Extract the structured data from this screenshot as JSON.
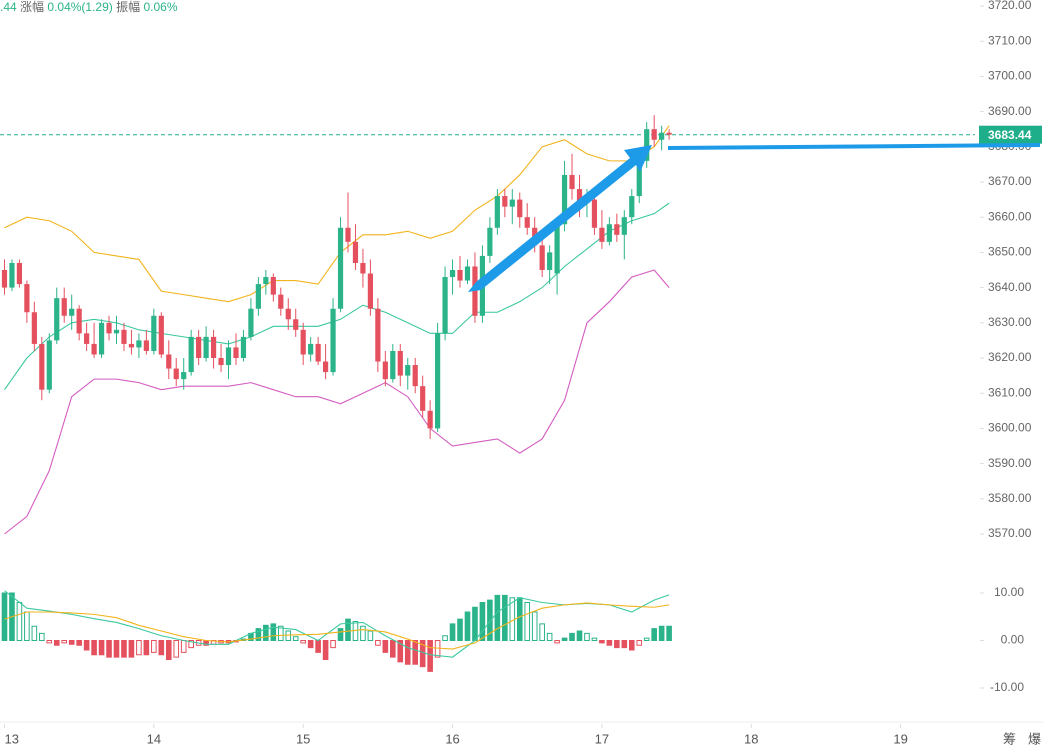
{
  "header": [
    ".44",
    "涨幅",
    "0.04%(1.29)",
    "振幅",
    "0.06%"
  ],
  "tools": [
    "筹",
    "爆"
  ],
  "chart_data": {
    "type": "candlestick",
    "up_color": "#2bb38a",
    "down_color": "#e5505e",
    "xlim": [
      12.97,
      19.96
    ],
    "xticks": [
      13,
      14,
      15,
      16,
      17,
      18,
      19
    ],
    "ylim": [
      3570,
      3720
    ],
    "yticks": [
      {
        "value": 3720,
        "label": "3720.00"
      },
      {
        "value": 3710,
        "label": "3710.00"
      },
      {
        "value": 3700,
        "label": "3700.00"
      },
      {
        "value": 3690,
        "label": "3690.00"
      },
      {
        "value": 3680,
        "label": "3680.00"
      },
      {
        "value": 3670,
        "label": "3670.00"
      },
      {
        "value": 3660,
        "label": "3660.00"
      },
      {
        "value": 3650,
        "label": "3650.00"
      },
      {
        "value": 3640,
        "label": "3640.00"
      },
      {
        "value": 3630,
        "label": "3630.00"
      },
      {
        "value": 3620,
        "label": "3620.00"
      },
      {
        "value": 3610,
        "label": "3610.00"
      },
      {
        "value": 3600,
        "label": "3600.00"
      },
      {
        "value": 3590,
        "label": "3590.00"
      },
      {
        "value": 3580,
        "label": "3580.00"
      },
      {
        "value": 3570,
        "label": "3570.00"
      }
    ],
    "last_price": 3683.44,
    "last_price_color": "#1fae8a",
    "x": [
      13,
      13.05,
      13.1,
      13.15,
      13.2,
      13.25,
      13.3,
      13.35,
      13.4,
      13.45,
      13.5,
      13.55,
      13.6,
      13.65,
      13.7,
      13.75,
      13.8,
      13.85,
      13.9,
      13.95,
      14,
      14.05,
      14.1,
      14.15,
      14.2,
      14.25,
      14.3,
      14.35,
      14.4,
      14.45,
      14.5,
      14.55,
      14.6,
      14.65,
      14.7,
      14.75,
      14.8,
      14.85,
      14.9,
      14.95,
      15,
      15.05,
      15.1,
      15.15,
      15.2,
      15.25,
      15.3,
      15.35,
      15.4,
      15.45,
      15.5,
      15.55,
      15.6,
      15.65,
      15.7,
      15.75,
      15.8,
      15.85,
      15.9,
      15.95,
      16,
      16.05,
      16.1,
      16.15,
      16.2,
      16.25,
      16.3,
      16.35,
      16.4,
      16.45,
      16.5,
      16.55,
      16.6,
      16.65,
      16.7,
      16.75,
      16.8,
      16.85,
      16.9,
      16.95,
      17,
      17.05,
      17.1,
      17.15,
      17.2,
      17.25,
      17.3,
      17.35,
      17.4,
      17.45
    ],
    "ohlc": [
      [
        3645,
        3648,
        3638,
        3640
      ],
      [
        3640,
        3648,
        3639,
        3647
      ],
      [
        3647,
        3648,
        3640,
        3641
      ],
      [
        3641,
        3642,
        3630,
        3633
      ],
      [
        3633,
        3636,
        3622,
        3624
      ],
      [
        3624,
        3626,
        3608,
        3611
      ],
      [
        3611,
        3627,
        3610,
        3625
      ],
      [
        3625,
        3640,
        3624,
        3637
      ],
      [
        3637,
        3640,
        3630,
        3632
      ],
      [
        3632,
        3638,
        3628,
        3634
      ],
      [
        3634,
        3635,
        3625,
        3627
      ],
      [
        3627,
        3630,
        3622,
        3624
      ],
      [
        3624,
        3630,
        3620,
        3621
      ],
      [
        3621,
        3631,
        3620,
        3630
      ],
      [
        3630,
        3632,
        3625,
        3627
      ],
      [
        3627,
        3632,
        3624,
        3628
      ],
      [
        3628,
        3630,
        3622,
        3624
      ],
      [
        3624,
        3628,
        3621,
        3623
      ],
      [
        3623,
        3627,
        3620,
        3625
      ],
      [
        3625,
        3628,
        3621,
        3622
      ],
      [
        3622,
        3634,
        3621,
        3632
      ],
      [
        3632,
        3633,
        3620,
        3621
      ],
      [
        3621,
        3625,
        3614,
        3617
      ],
      [
        3617,
        3620,
        3612,
        3614
      ],
      [
        3614,
        3620,
        3611,
        3616
      ],
      [
        3616,
        3628,
        3615,
        3626
      ],
      [
        3626,
        3628,
        3618,
        3620
      ],
      [
        3620,
        3629,
        3619,
        3626
      ],
      [
        3626,
        3628,
        3617,
        3620
      ],
      [
        3620,
        3624,
        3616,
        3618
      ],
      [
        3618,
        3625,
        3614,
        3623
      ],
      [
        3623,
        3627,
        3618,
        3620
      ],
      [
        3620,
        3628,
        3619,
        3626
      ],
      [
        3626,
        3637,
        3625,
        3634
      ],
      [
        3634,
        3643,
        3632,
        3641
      ],
      [
        3641,
        3645,
        3638,
        3643
      ],
      [
        3643,
        3644,
        3636,
        3638
      ],
      [
        3638,
        3640,
        3632,
        3634
      ],
      [
        3634,
        3637,
        3628,
        3631
      ],
      [
        3631,
        3634,
        3626,
        3628
      ],
      [
        3628,
        3630,
        3618,
        3621
      ],
      [
        3621,
        3626,
        3619,
        3624
      ],
      [
        3624,
        3626,
        3618,
        3619
      ],
      [
        3619,
        3624,
        3614,
        3616
      ],
      [
        3616,
        3637,
        3615,
        3634
      ],
      [
        3634,
        3660,
        3633,
        3657
      ],
      [
        3657,
        3667,
        3650,
        3653
      ],
      [
        3653,
        3658,
        3645,
        3647
      ],
      [
        3647,
        3651,
        3640,
        3644
      ],
      [
        3644,
        3648,
        3632,
        3634
      ],
      [
        3634,
        3637,
        3616,
        3619
      ],
      [
        3619,
        3622,
        3612,
        3614
      ],
      [
        3614,
        3624,
        3613,
        3622
      ],
      [
        3622,
        3624,
        3612,
        3615
      ],
      [
        3615,
        3620,
        3611,
        3618
      ],
      [
        3618,
        3620,
        3610,
        3612
      ],
      [
        3612,
        3615,
        3603,
        3605
      ],
      [
        3605,
        3608,
        3597,
        3600
      ],
      [
        3600,
        3630,
        3599,
        3627
      ],
      [
        3627,
        3646,
        3625,
        3643
      ],
      [
        3643,
        3648,
        3638,
        3645
      ],
      [
        3645,
        3649,
        3640,
        3642
      ],
      [
        3642,
        3648,
        3641,
        3646
      ],
      [
        3646,
        3650,
        3630,
        3632
      ],
      [
        3632,
        3652,
        3630,
        3649
      ],
      [
        3649,
        3660,
        3647,
        3657
      ],
      [
        3657,
        3668,
        3655,
        3666
      ],
      [
        3666,
        3668,
        3660,
        3663
      ],
      [
        3663,
        3668,
        3658,
        3665
      ],
      [
        3665,
        3667,
        3657,
        3660
      ],
      [
        3660,
        3664,
        3655,
        3657
      ],
      [
        3657,
        3660,
        3650,
        3652
      ],
      [
        3652,
        3656,
        3643,
        3645
      ],
      [
        3645,
        3652,
        3641,
        3650
      ],
      [
        3644,
        3660,
        3638,
        3658
      ],
      [
        3658,
        3676,
        3656,
        3672
      ],
      [
        3672,
        3678,
        3665,
        3668
      ],
      [
        3668,
        3672,
        3660,
        3664
      ],
      [
        3664,
        3668,
        3660,
        3665
      ],
      [
        3665,
        3668,
        3655,
        3657
      ],
      [
        3657,
        3662,
        3651,
        3653
      ],
      [
        3653,
        3660,
        3652,
        3658
      ],
      [
        3658,
        3661,
        3653,
        3655
      ],
      [
        3655,
        3662,
        3648,
        3660
      ],
      [
        3660,
        3668,
        3658,
        3666
      ],
      [
        3666,
        3678,
        3664,
        3676
      ],
      [
        3676,
        3687,
        3674,
        3685
      ],
      [
        3685,
        3689,
        3680,
        3682
      ],
      [
        3682,
        3686,
        3679,
        3684
      ],
      [
        3684,
        3685,
        3682,
        3683.44
      ]
    ],
    "bands": {
      "x": [
        13,
        13.15,
        13.3,
        13.45,
        13.6,
        13.75,
        13.9,
        14.05,
        14.2,
        14.35,
        14.5,
        14.65,
        14.8,
        14.95,
        15.1,
        15.25,
        15.4,
        15.55,
        15.7,
        15.85,
        16,
        16.15,
        16.3,
        16.45,
        16.6,
        16.75,
        16.9,
        17.05,
        17.2,
        17.35,
        17.45
      ],
      "series": [
        {
          "color": "#f2b41c",
          "values": [
            3657,
            3660,
            3659,
            3656,
            3650,
            3649,
            3648,
            3639,
            3638,
            3637,
            3636,
            3638,
            3642,
            3642,
            3641,
            3650,
            3655,
            3655,
            3656,
            3654,
            3656,
            3662,
            3666,
            3672,
            3680,
            3682,
            3678,
            3676,
            3676,
            3680,
            3686
          ]
        },
        {
          "color": "#3cc8a0",
          "values": [
            3611,
            3620,
            3626,
            3630,
            3631,
            3630,
            3628,
            3627,
            3626,
            3625,
            3624,
            3626,
            3629,
            3629,
            3629,
            3631,
            3635,
            3633,
            3630,
            3627,
            3627,
            3633,
            3633,
            3636,
            3640,
            3646,
            3651,
            3656,
            3659,
            3661,
            3664
          ]
        },
        {
          "color": "#d45cc0",
          "values": [
            3570,
            3575,
            3588,
            3609,
            3614,
            3614,
            3613,
            3611,
            3612,
            3612,
            3612,
            3613,
            3611,
            3609,
            3609,
            3607,
            3610,
            3613,
            3609,
            3600,
            3595,
            3596,
            3597,
            3593,
            3597,
            3608,
            3630,
            3636,
            3643,
            3645,
            3640
          ]
        }
      ]
    },
    "macd": {
      "ylim": [
        -12,
        12
      ],
      "yticks": [
        {
          "value": 10,
          "label": "10.00"
        },
        {
          "value": 0,
          "label": "0.00"
        },
        {
          "value": -10,
          "label": "-10.00"
        }
      ],
      "histogram": [
        10,
        10,
        8,
        6,
        3,
        1.5,
        -0.5,
        -1,
        -0.5,
        -0.8,
        -1,
        -2,
        -3,
        -3,
        -3.5,
        -3.5,
        -3.5,
        -3.5,
        -3,
        -3,
        -2.5,
        -3,
        -4,
        -3.5,
        -2.5,
        -1.5,
        -1,
        -1,
        -0.8,
        -0.5,
        -0.5,
        -0.3,
        0.3,
        1.5,
        2.5,
        3.2,
        3.5,
        3,
        2,
        0.8,
        -0.5,
        -1.5,
        -2.5,
        -4,
        -1.5,
        2.5,
        4.5,
        4,
        3,
        2,
        -1,
        -2.5,
        -3.5,
        -4.5,
        -5,
        -5,
        -5.5,
        -6.5,
        -3.5,
        1,
        3.5,
        4.5,
        6,
        7,
        8,
        8.5,
        9.5,
        9.5,
        9,
        9,
        8,
        6,
        3.5,
        1.5,
        -0.5,
        0.5,
        1.5,
        2,
        1.5,
        0.5,
        -0.5,
        -1,
        -1.5,
        -1.5,
        -2,
        -1,
        0.5,
        2.5,
        3,
        3
      ],
      "series": [
        {
          "color": "#3cc8a0",
          "values": [
            10.5,
            6.8,
            6.2,
            5.5,
            4.6,
            3.8,
            2.5,
            1,
            0,
            -0.8,
            -0.8,
            1.5,
            2.8,
            2.3,
            0,
            3.5,
            3.8,
            1,
            -1.5,
            -3,
            -3.5,
            0,
            6,
            9,
            8,
            7.5,
            7.8,
            7.5,
            6,
            8.5,
            9.6
          ]
        },
        {
          "color": "#f2b41c",
          "values": [
            4.5,
            6,
            6,
            5.8,
            5.5,
            4.8,
            3.2,
            2,
            0.8,
            0,
            -0.3,
            0.3,
            1,
            1.2,
            1.3,
            1.8,
            2.3,
            1.8,
            0.3,
            -1.5,
            -1.8,
            -0.5,
            2.5,
            5,
            6.8,
            7.5,
            7.9,
            7.5,
            7.2,
            7,
            7.5
          ]
        }
      ]
    }
  }
}
